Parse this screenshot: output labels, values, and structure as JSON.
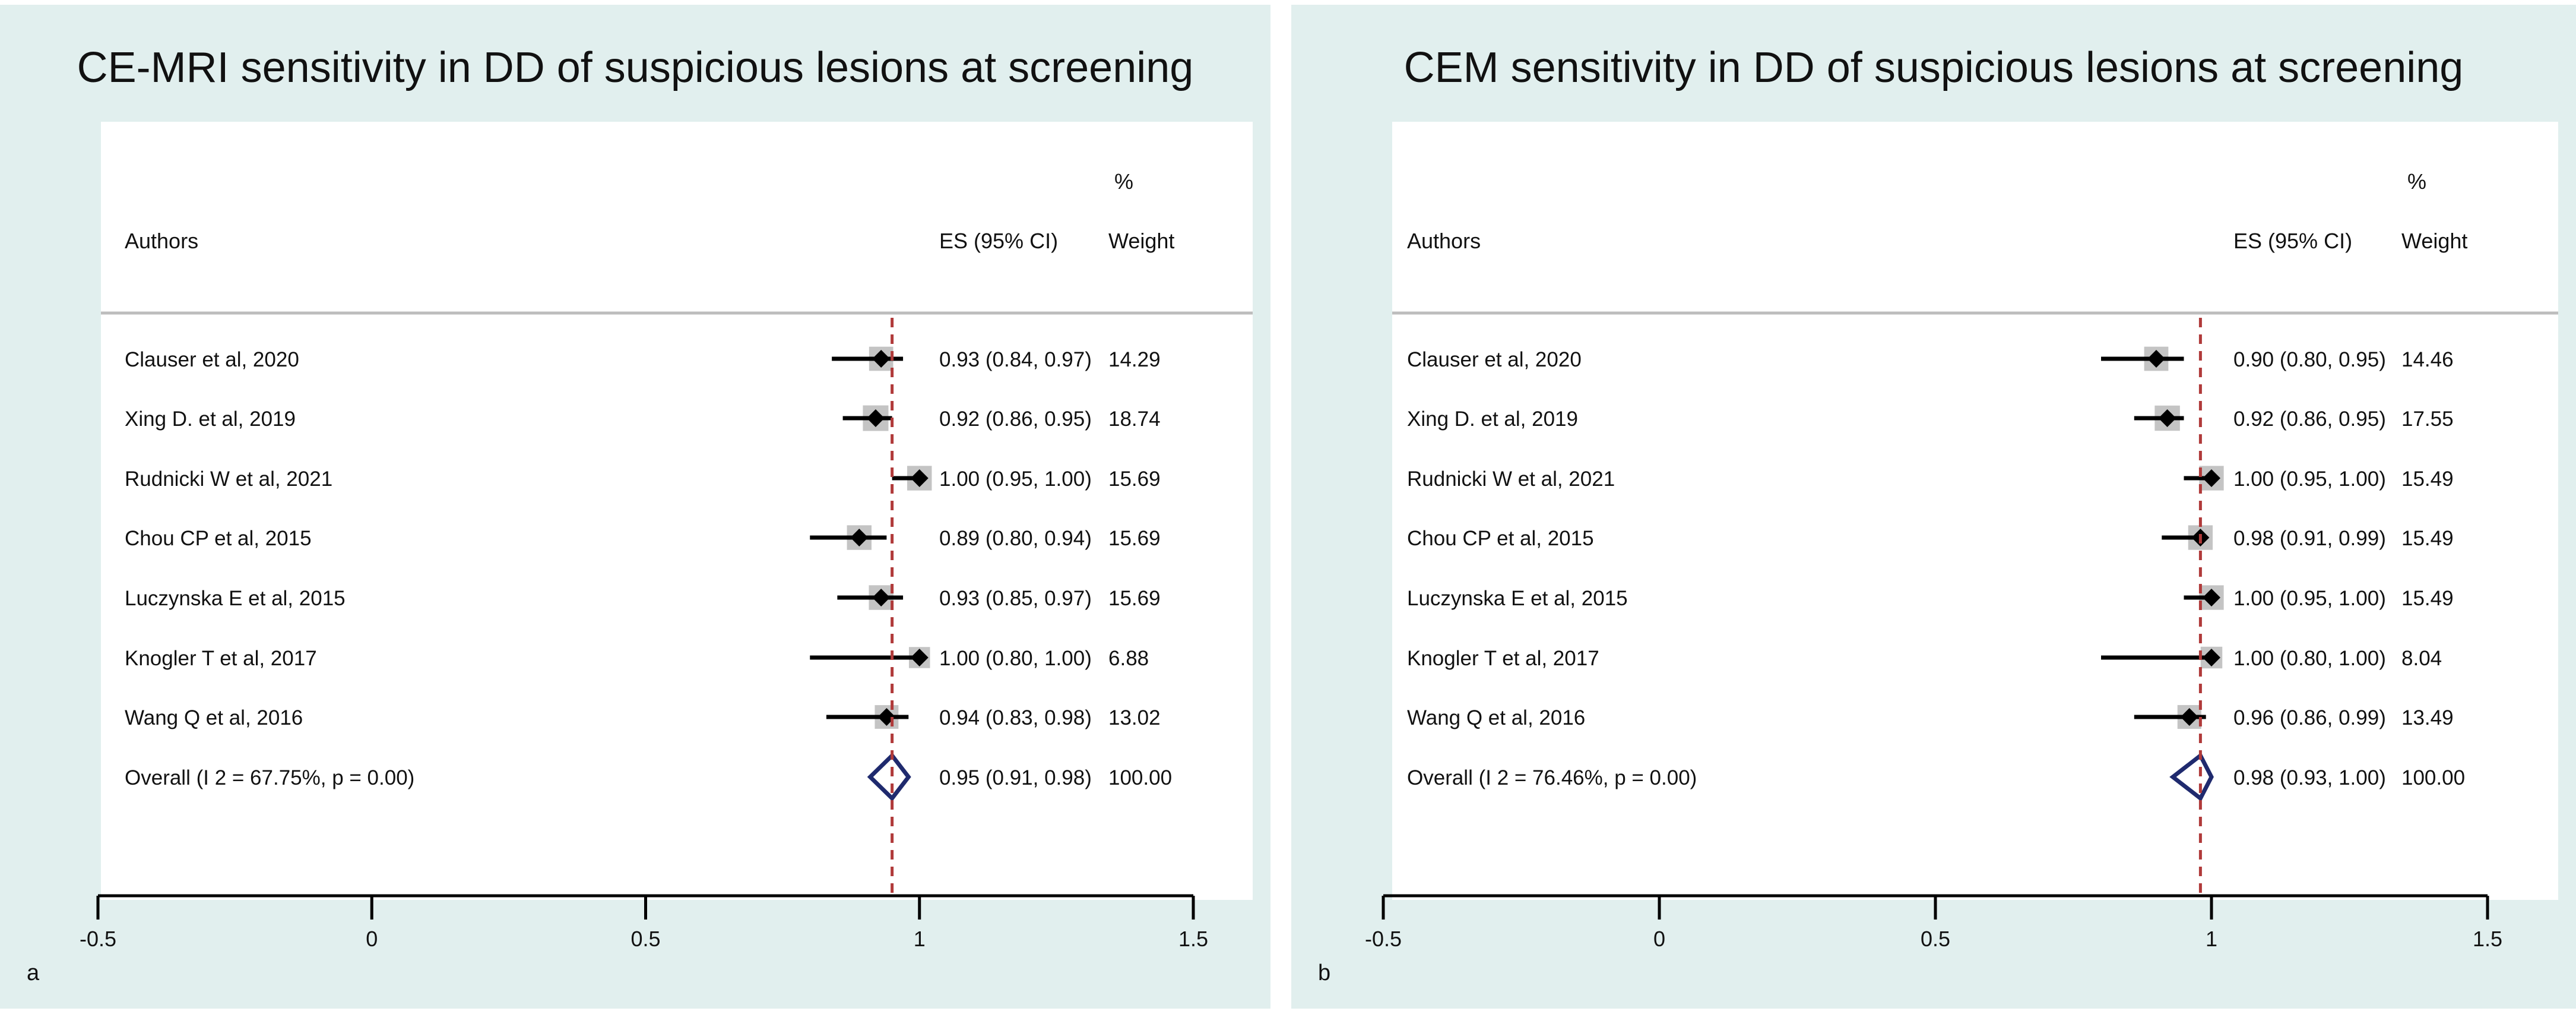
{
  "colors": {
    "panel_bg": "#e1efee",
    "plot_bg": "#ffffff",
    "marker": "#000000",
    "weight_box": "#c4c4c4",
    "ref_line": "#b03a3a",
    "overall_diamond": "#1f2a6e",
    "separator": "#bdbdbd"
  },
  "chart_data": [
    {
      "type": "forest",
      "panel_label": "a",
      "title": "CE-MRI sensitivity in DD of suspicious lesions at screening",
      "header": {
        "authors": "Authors",
        "es": "ES (95% CI)",
        "weight_pct": "%",
        "weight": "Weight"
      },
      "xlim": [
        -0.5,
        1.5
      ],
      "x_ticks": [
        -0.5,
        0,
        0.5,
        1,
        1.5
      ],
      "x_tick_labels": [
        "-0.5",
        "0",
        "0.5",
        "1",
        "1.5"
      ],
      "reference_line": 0.95,
      "studies": [
        {
          "author": "Clauser et al, 2020",
          "es": 0.93,
          "lower": 0.84,
          "upper": 0.97,
          "es_text": "0.93 (0.84, 0.97)",
          "weight": 14.29,
          "weight_text": "14.29"
        },
        {
          "author": "Xing D. et al, 2019",
          "es": 0.92,
          "lower": 0.86,
          "upper": 0.95,
          "es_text": "0.92 (0.86, 0.95)",
          "weight": 18.74,
          "weight_text": "18.74"
        },
        {
          "author": "Rudnicki W et al, 2021",
          "es": 1.0,
          "lower": 0.95,
          "upper": 1.0,
          "es_text": "1.00 (0.95, 1.00)",
          "weight": 15.69,
          "weight_text": "15.69"
        },
        {
          "author": "Chou CP et al, 2015",
          "es": 0.89,
          "lower": 0.8,
          "upper": 0.94,
          "es_text": "0.89 (0.80, 0.94)",
          "weight": 15.69,
          "weight_text": "15.69"
        },
        {
          "author": "Luczynska E et al, 2015",
          "es": 0.93,
          "lower": 0.85,
          "upper": 0.97,
          "es_text": "0.93 (0.85, 0.97)",
          "weight": 15.69,
          "weight_text": "15.69"
        },
        {
          "author": "Knogler T et al, 2017",
          "es": 1.0,
          "lower": 0.8,
          "upper": 1.0,
          "es_text": "1.00 (0.80, 1.00)",
          "weight": 6.88,
          "weight_text": "6.88"
        },
        {
          "author": "Wang Q et al, 2016",
          "es": 0.94,
          "lower": 0.83,
          "upper": 0.98,
          "es_text": "0.94 (0.83, 0.98)",
          "weight": 13.02,
          "weight_text": "13.02"
        }
      ],
      "overall": {
        "label": "Overall  (I 2 = 67.75%, p = 0.00)",
        "es": 0.95,
        "lower": 0.91,
        "upper": 0.98,
        "es_text": "0.95 (0.91, 0.98)",
        "weight_text": "100.00"
      }
    },
    {
      "type": "forest",
      "panel_label": "b",
      "title": "CEM sensitivity in DD of suspicious lesions at screening",
      "header": {
        "authors": "Authors",
        "es": "ES (95% CI)",
        "weight_pct": "%",
        "weight": "Weight"
      },
      "xlim": [
        -0.5,
        1.5
      ],
      "x_ticks": [
        -0.5,
        0,
        0.5,
        1,
        1.5
      ],
      "x_tick_labels": [
        "-0.5",
        "0",
        "0.5",
        "1",
        "1.5"
      ],
      "reference_line": 0.98,
      "studies": [
        {
          "author": "Clauser et al, 2020",
          "es": 0.9,
          "lower": 0.8,
          "upper": 0.95,
          "es_text": "0.90 (0.80, 0.95)",
          "weight": 14.46,
          "weight_text": "14.46"
        },
        {
          "author": "Xing D. et al, 2019",
          "es": 0.92,
          "lower": 0.86,
          "upper": 0.95,
          "es_text": "0.92 (0.86, 0.95)",
          "weight": 17.55,
          "weight_text": "17.55"
        },
        {
          "author": "Rudnicki W et al, 2021",
          "es": 1.0,
          "lower": 0.95,
          "upper": 1.0,
          "es_text": "1.00 (0.95, 1.00)",
          "weight": 15.49,
          "weight_text": "15.49"
        },
        {
          "author": "Chou CP et al, 2015",
          "es": 0.98,
          "lower": 0.91,
          "upper": 0.99,
          "es_text": "0.98 (0.91, 0.99)",
          "weight": 15.49,
          "weight_text": "15.49"
        },
        {
          "author": "Luczynska E et al, 2015",
          "es": 1.0,
          "lower": 0.95,
          "upper": 1.0,
          "es_text": "1.00 (0.95, 1.00)",
          "weight": 15.49,
          "weight_text": "15.49"
        },
        {
          "author": "Knogler T et al, 2017",
          "es": 1.0,
          "lower": 0.8,
          "upper": 1.0,
          "es_text": "1.00 (0.80, 1.00)",
          "weight": 8.04,
          "weight_text": "8.04"
        },
        {
          "author": "Wang Q et al, 2016",
          "es": 0.96,
          "lower": 0.86,
          "upper": 0.99,
          "es_text": "0.96 (0.86, 0.99)",
          "weight": 13.49,
          "weight_text": "13.49"
        }
      ],
      "overall": {
        "label": "Overall  (I 2 = 76.46%, p = 0.00)",
        "es": 0.98,
        "lower": 0.93,
        "upper": 1.0,
        "es_text": "0.98 (0.93, 1.00)",
        "weight_text": "100.00"
      }
    }
  ]
}
